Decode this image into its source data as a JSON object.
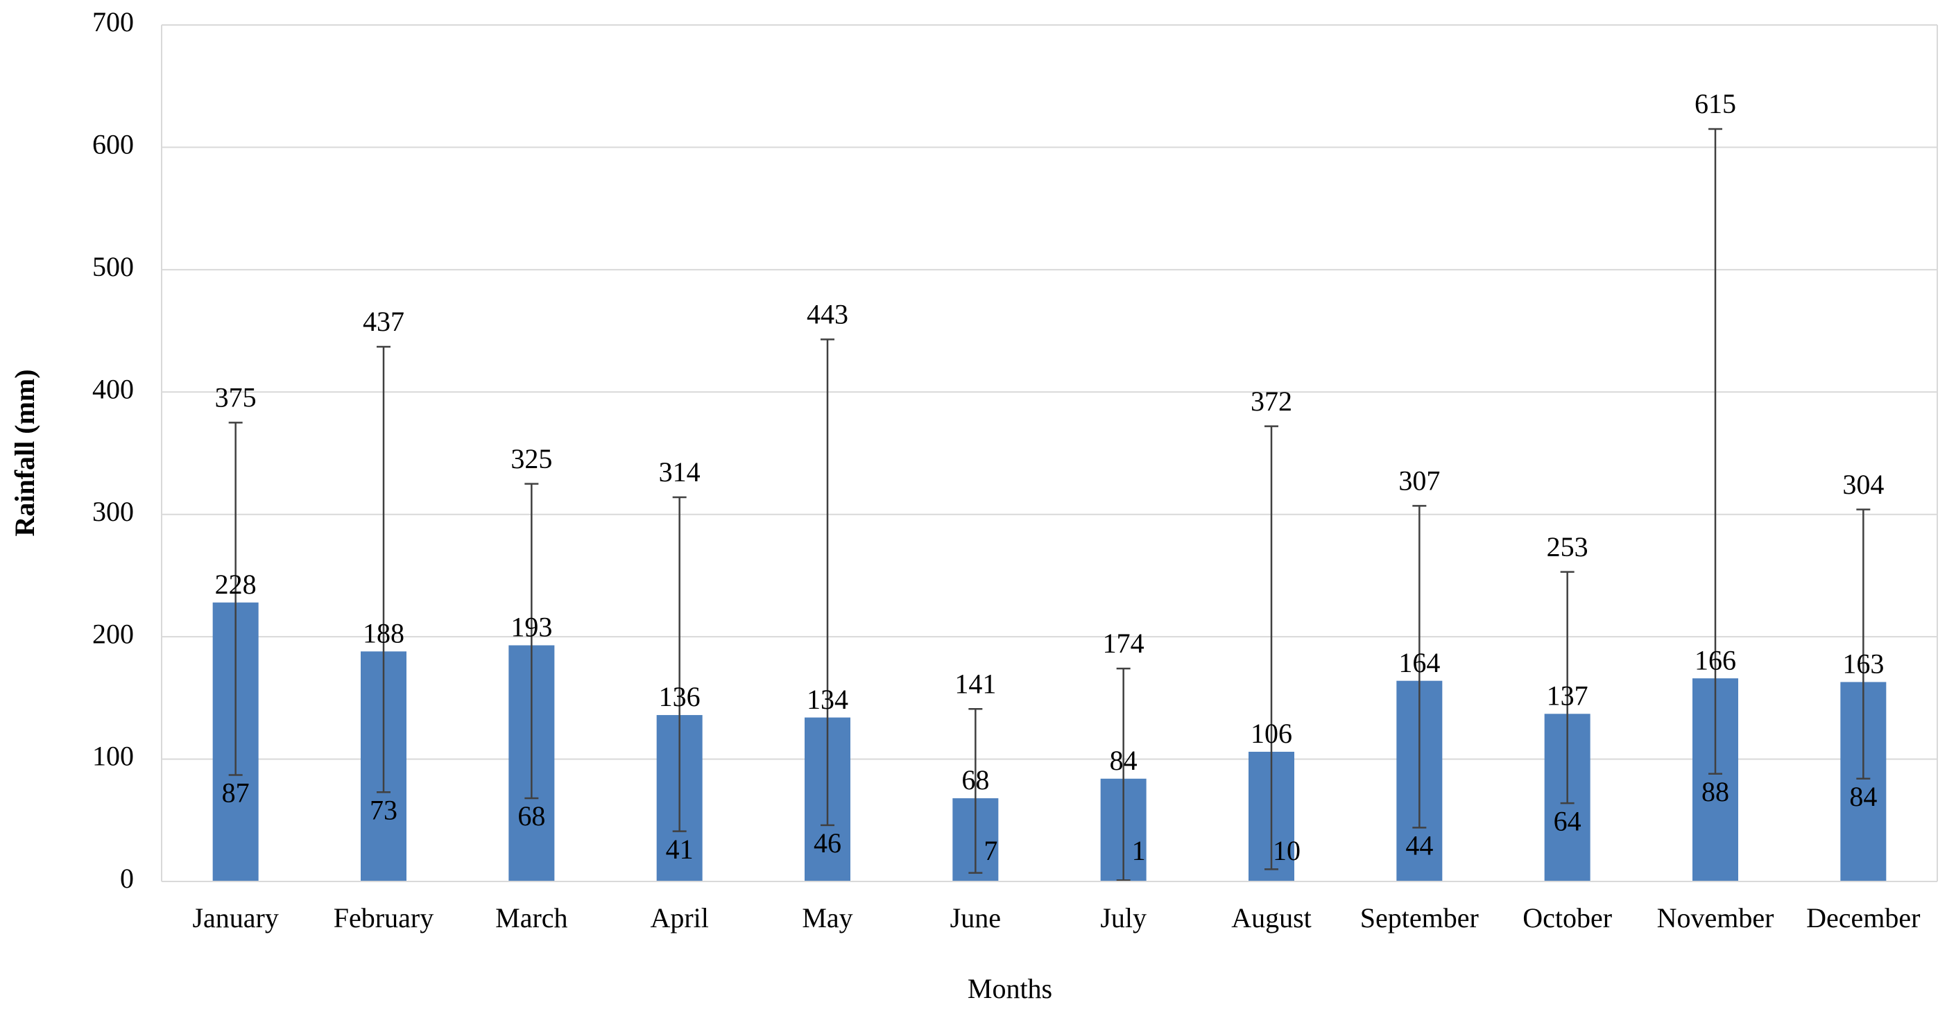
{
  "chart_data": {
    "type": "bar",
    "y_label": "Rainfall (mm)",
    "x_label": "Months",
    "categories": [
      "January",
      "February",
      "March",
      "April",
      "May",
      "June",
      "July",
      "August",
      "September",
      "October",
      "November",
      "December"
    ],
    "values": [
      228,
      188,
      193,
      136,
      134,
      68,
      84,
      106,
      164,
      137,
      166,
      163
    ],
    "low": [
      87,
      73,
      68,
      41,
      46,
      7,
      1,
      10,
      44,
      64,
      88,
      84
    ],
    "high": [
      375,
      437,
      325,
      314,
      443,
      141,
      174,
      372,
      307,
      253,
      615,
      304
    ],
    "color": "#4f81bd",
    "ylim": [
      0,
      700
    ],
    "yticks": [
      0,
      100,
      200,
      300,
      400,
      500,
      600,
      700
    ],
    "grid": true
  }
}
